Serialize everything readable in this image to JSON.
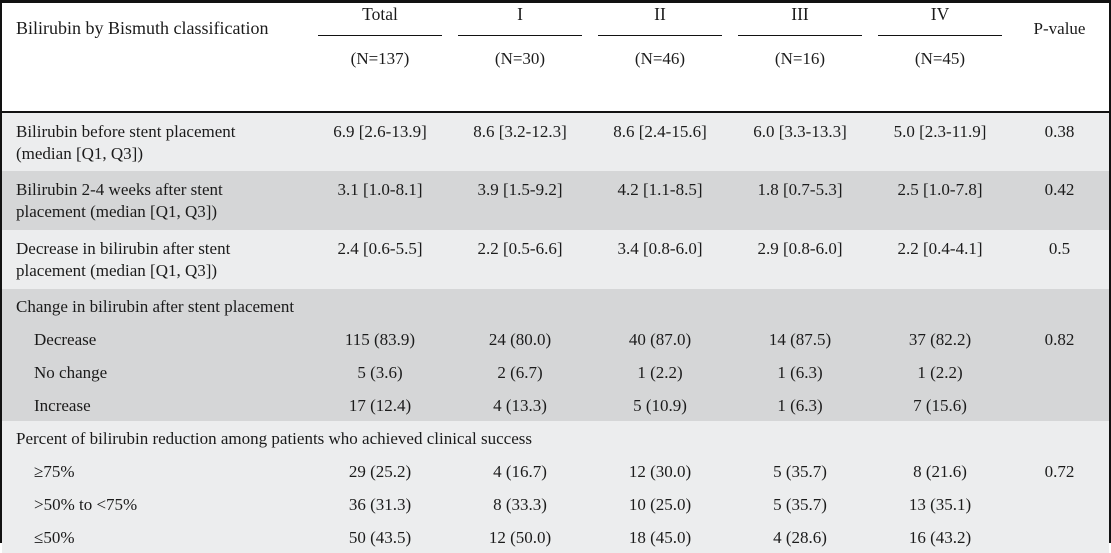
{
  "table": {
    "header": {
      "label": "Bilirubin by Bismuth classification",
      "groups": [
        {
          "label": "Total",
          "n": "(N=137)"
        },
        {
          "label": "I",
          "n": "(N=30)"
        },
        {
          "label": "II",
          "n": "(N=46)"
        },
        {
          "label": "III",
          "n": "(N=16)"
        },
        {
          "label": "IV",
          "n": "(N=45)"
        }
      ],
      "pvalue": "P-value"
    },
    "rows": [
      {
        "type": "data",
        "label": "Bilirubin before stent placement (median [Q1, Q3])",
        "cells": [
          "6.9 [2.6-13.9]",
          "8.6 [3.2-12.3]",
          "8.6 [2.4-15.6]",
          "6.0 [3.3-13.3]",
          "5.0 [2.3-11.9]",
          "0.38"
        ]
      },
      {
        "type": "data",
        "label": "Bilirubin 2-4 weeks after stent placement (median [Q1, Q3])",
        "cells": [
          "3.1 [1.0-8.1]",
          "3.9 [1.5-9.2]",
          "4.2 [1.1-8.5]",
          "1.8 [0.7-5.3]",
          "2.5 [1.0-7.8]",
          "0.42"
        ]
      },
      {
        "type": "data",
        "label": "Decrease in bilirubin after stent placement (median [Q1, Q3])",
        "cells": [
          "2.4 [0.6-5.5]",
          "2.2 [0.5-6.6]",
          "3.4 [0.8-6.0]",
          "2.9 [0.8-6.0]",
          "2.2 [0.4-4.1]",
          "0.5"
        ]
      },
      {
        "type": "section",
        "label": "Change in bilirubin after stent placement"
      },
      {
        "type": "sub",
        "label": "Decrease",
        "cells": [
          "115 (83.9)",
          "24 (80.0)",
          "40 (87.0)",
          "14 (87.5)",
          "37 (82.2)",
          "0.82"
        ]
      },
      {
        "type": "sub",
        "label": "No change",
        "cells": [
          "5 (3.6)",
          "2 (6.7)",
          "1 (2.2)",
          "1 (6.3)",
          "1 (2.2)",
          ""
        ]
      },
      {
        "type": "sub",
        "label": "Increase",
        "cells": [
          "17 (12.4)",
          "4 (13.3)",
          "5 (10.9)",
          "1 (6.3)",
          "7 (15.6)",
          ""
        ]
      },
      {
        "type": "section",
        "label": "Percent of bilirubin reduction among patients who achieved clinical success"
      },
      {
        "type": "sub",
        "label": "≥75%",
        "cells": [
          "29 (25.2)",
          "4 (16.7)",
          "12 (30.0)",
          "5 (35.7)",
          "8 (21.6)",
          "0.72"
        ]
      },
      {
        "type": "sub",
        "label": ">50% to <75%",
        "cells": [
          "36 (31.3)",
          "8 (33.3)",
          "10 (25.0)",
          "5 (35.7)",
          "13 (35.1)",
          ""
        ]
      },
      {
        "type": "sub",
        "label": "≤50%",
        "cells": [
          "50 (43.5)",
          "12 (50.0)",
          "18 (45.0)",
          "4 (28.6)",
          "16 (43.2)",
          ""
        ]
      }
    ],
    "colors": {
      "row_light": "#ecedee",
      "row_dark": "#d5d6d7",
      "border": "#121212"
    }
  }
}
